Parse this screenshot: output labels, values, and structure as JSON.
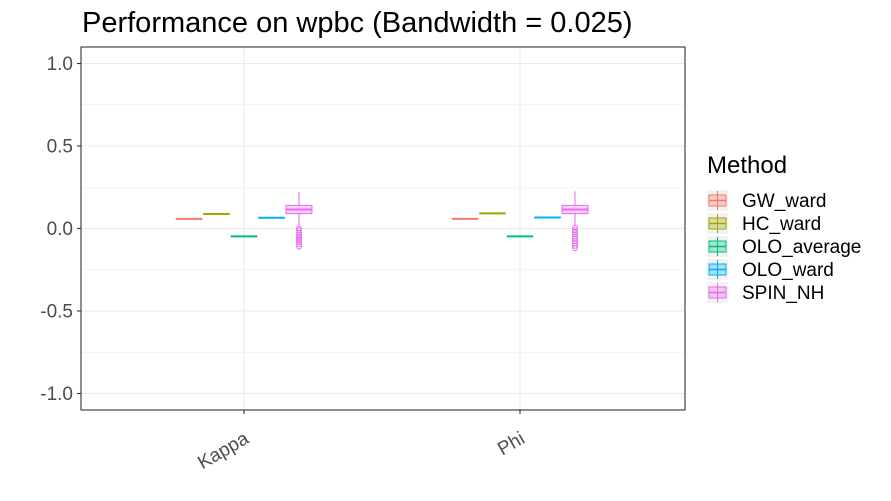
{
  "chart_data": {
    "type": "boxplot",
    "title": "Performance on wpbc (Bandwidth = 0.025)",
    "xlabel": "",
    "ylabel": "",
    "categories": [
      "Kappa",
      "Phi"
    ],
    "ylim": [
      -1.1,
      1.1
    ],
    "yticks": [
      1.0,
      0.5,
      0.0,
      -0.5,
      -1.0
    ],
    "ytick_labels": [
      "1.0",
      "0.5",
      "0.0",
      "-0.5",
      "-1.0"
    ],
    "grid": true,
    "legend": {
      "title": "Method",
      "position": "right"
    },
    "series": [
      {
        "name": "GW_ward",
        "color": "#F8766D",
        "stats": [
          {
            "min": 0.058,
            "q1": 0.058,
            "median": 0.058,
            "q3": 0.058,
            "max": 0.058,
            "outliers": []
          },
          {
            "min": 0.058,
            "q1": 0.058,
            "median": 0.058,
            "q3": 0.058,
            "max": 0.058,
            "outliers": []
          }
        ]
      },
      {
        "name": "HC_ward",
        "color": "#A3A500",
        "stats": [
          {
            "min": 0.088,
            "q1": 0.088,
            "median": 0.088,
            "q3": 0.088,
            "max": 0.088,
            "outliers": []
          },
          {
            "min": 0.092,
            "q1": 0.092,
            "median": 0.092,
            "q3": 0.092,
            "max": 0.092,
            "outliers": []
          }
        ]
      },
      {
        "name": "OLO_average",
        "color": "#00BF7D",
        "stats": [
          {
            "min": -0.048,
            "q1": -0.048,
            "median": -0.048,
            "q3": -0.048,
            "max": -0.048,
            "outliers": []
          },
          {
            "min": -0.048,
            "q1": -0.048,
            "median": -0.048,
            "q3": -0.048,
            "max": -0.048,
            "outliers": []
          }
        ]
      },
      {
        "name": "OLO_ward",
        "color": "#00B0F6",
        "stats": [
          {
            "min": 0.065,
            "q1": 0.065,
            "median": 0.065,
            "q3": 0.065,
            "max": 0.065,
            "outliers": []
          },
          {
            "min": 0.067,
            "q1": 0.067,
            "median": 0.067,
            "q3": 0.067,
            "max": 0.067,
            "outliers": []
          }
        ]
      },
      {
        "name": "SPIN_NH",
        "color": "#E76BF3",
        "stats": [
          {
            "min": 0.015,
            "q1": 0.09,
            "median": 0.115,
            "q3": 0.14,
            "max": 0.22,
            "outliers": [
              0.0,
              -0.01,
              -0.025,
              -0.04,
              -0.05,
              -0.06,
              -0.07,
              -0.08,
              -0.095,
              -0.11
            ]
          },
          {
            "min": 0.015,
            "q1": 0.09,
            "median": 0.115,
            "q3": 0.14,
            "max": 0.225,
            "outliers": [
              0.005,
              -0.01,
              -0.02,
              -0.035,
              -0.05,
              -0.06,
              -0.075,
              -0.09,
              -0.105,
              -0.12
            ]
          }
        ]
      }
    ]
  }
}
